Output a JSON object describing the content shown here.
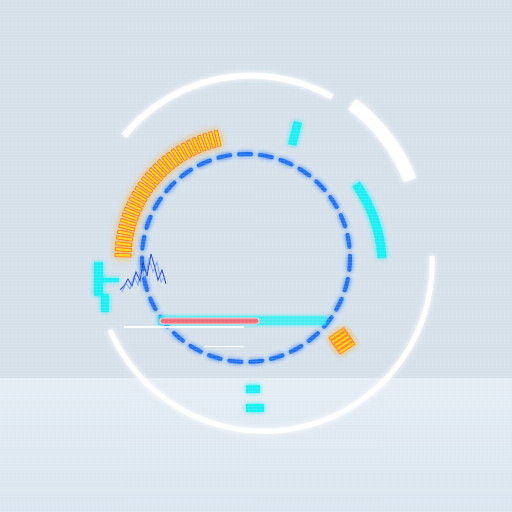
{
  "hud": {
    "caption": "",
    "colors": {
      "background": "#d5e0ea",
      "outer_ring": "#ffffff",
      "cyan": "#14f0f4",
      "dash_blue": "#1f6ff2",
      "amber": "#ffd21a",
      "amber_glow": "#ff6a10",
      "red_bar": "#f06a78",
      "waveform": "#1c3fd0"
    },
    "amber_gauge": {
      "segments_total": 30
    },
    "amber_small": {
      "segments_total": 5
    }
  }
}
